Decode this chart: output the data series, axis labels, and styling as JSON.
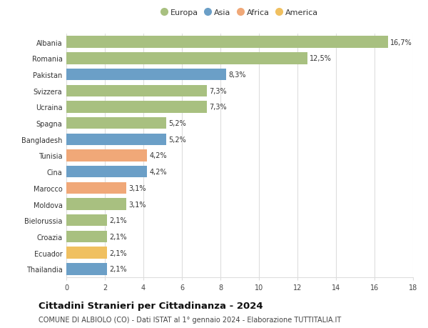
{
  "categories": [
    "Thailandia",
    "Ecuador",
    "Croazia",
    "Bielorussia",
    "Moldova",
    "Marocco",
    "Cina",
    "Tunisia",
    "Bangladesh",
    "Spagna",
    "Ucraina",
    "Svizzera",
    "Pakistan",
    "Romania",
    "Albania"
  ],
  "values": [
    2.1,
    2.1,
    2.1,
    2.1,
    3.1,
    3.1,
    4.2,
    4.2,
    5.2,
    5.2,
    7.3,
    7.3,
    8.3,
    12.5,
    16.7
  ],
  "labels": [
    "2,1%",
    "2,1%",
    "2,1%",
    "2,1%",
    "3,1%",
    "3,1%",
    "4,2%",
    "4,2%",
    "5,2%",
    "5,2%",
    "7,3%",
    "7,3%",
    "8,3%",
    "12,5%",
    "16,7%"
  ],
  "colors": [
    "#6b9fc7",
    "#f0c060",
    "#a8c080",
    "#a8c080",
    "#a8c080",
    "#f0a878",
    "#6b9fc7",
    "#f0a878",
    "#6b9fc7",
    "#a8c080",
    "#a8c080",
    "#a8c080",
    "#6b9fc7",
    "#a8c080",
    "#a8c080"
  ],
  "legend_labels": [
    "Europa",
    "Asia",
    "Africa",
    "America"
  ],
  "legend_colors": [
    "#a8c080",
    "#6b9fc7",
    "#f0a878",
    "#f0c060"
  ],
  "title": "Cittadini Stranieri per Cittadinanza - 2024",
  "subtitle": "COMUNE DI ALBIOLO (CO) - Dati ISTAT al 1° gennaio 2024 - Elaborazione TUTTITALIA.IT",
  "xlim": [
    0,
    18
  ],
  "xticks": [
    0,
    2,
    4,
    6,
    8,
    10,
    12,
    14,
    16,
    18
  ],
  "background_color": "#ffffff",
  "grid_color": "#dddddd",
  "bar_height": 0.72,
  "title_fontsize": 9.5,
  "subtitle_fontsize": 7.0,
  "label_fontsize": 7.0,
  "tick_fontsize": 7.0,
  "legend_fontsize": 8.0
}
